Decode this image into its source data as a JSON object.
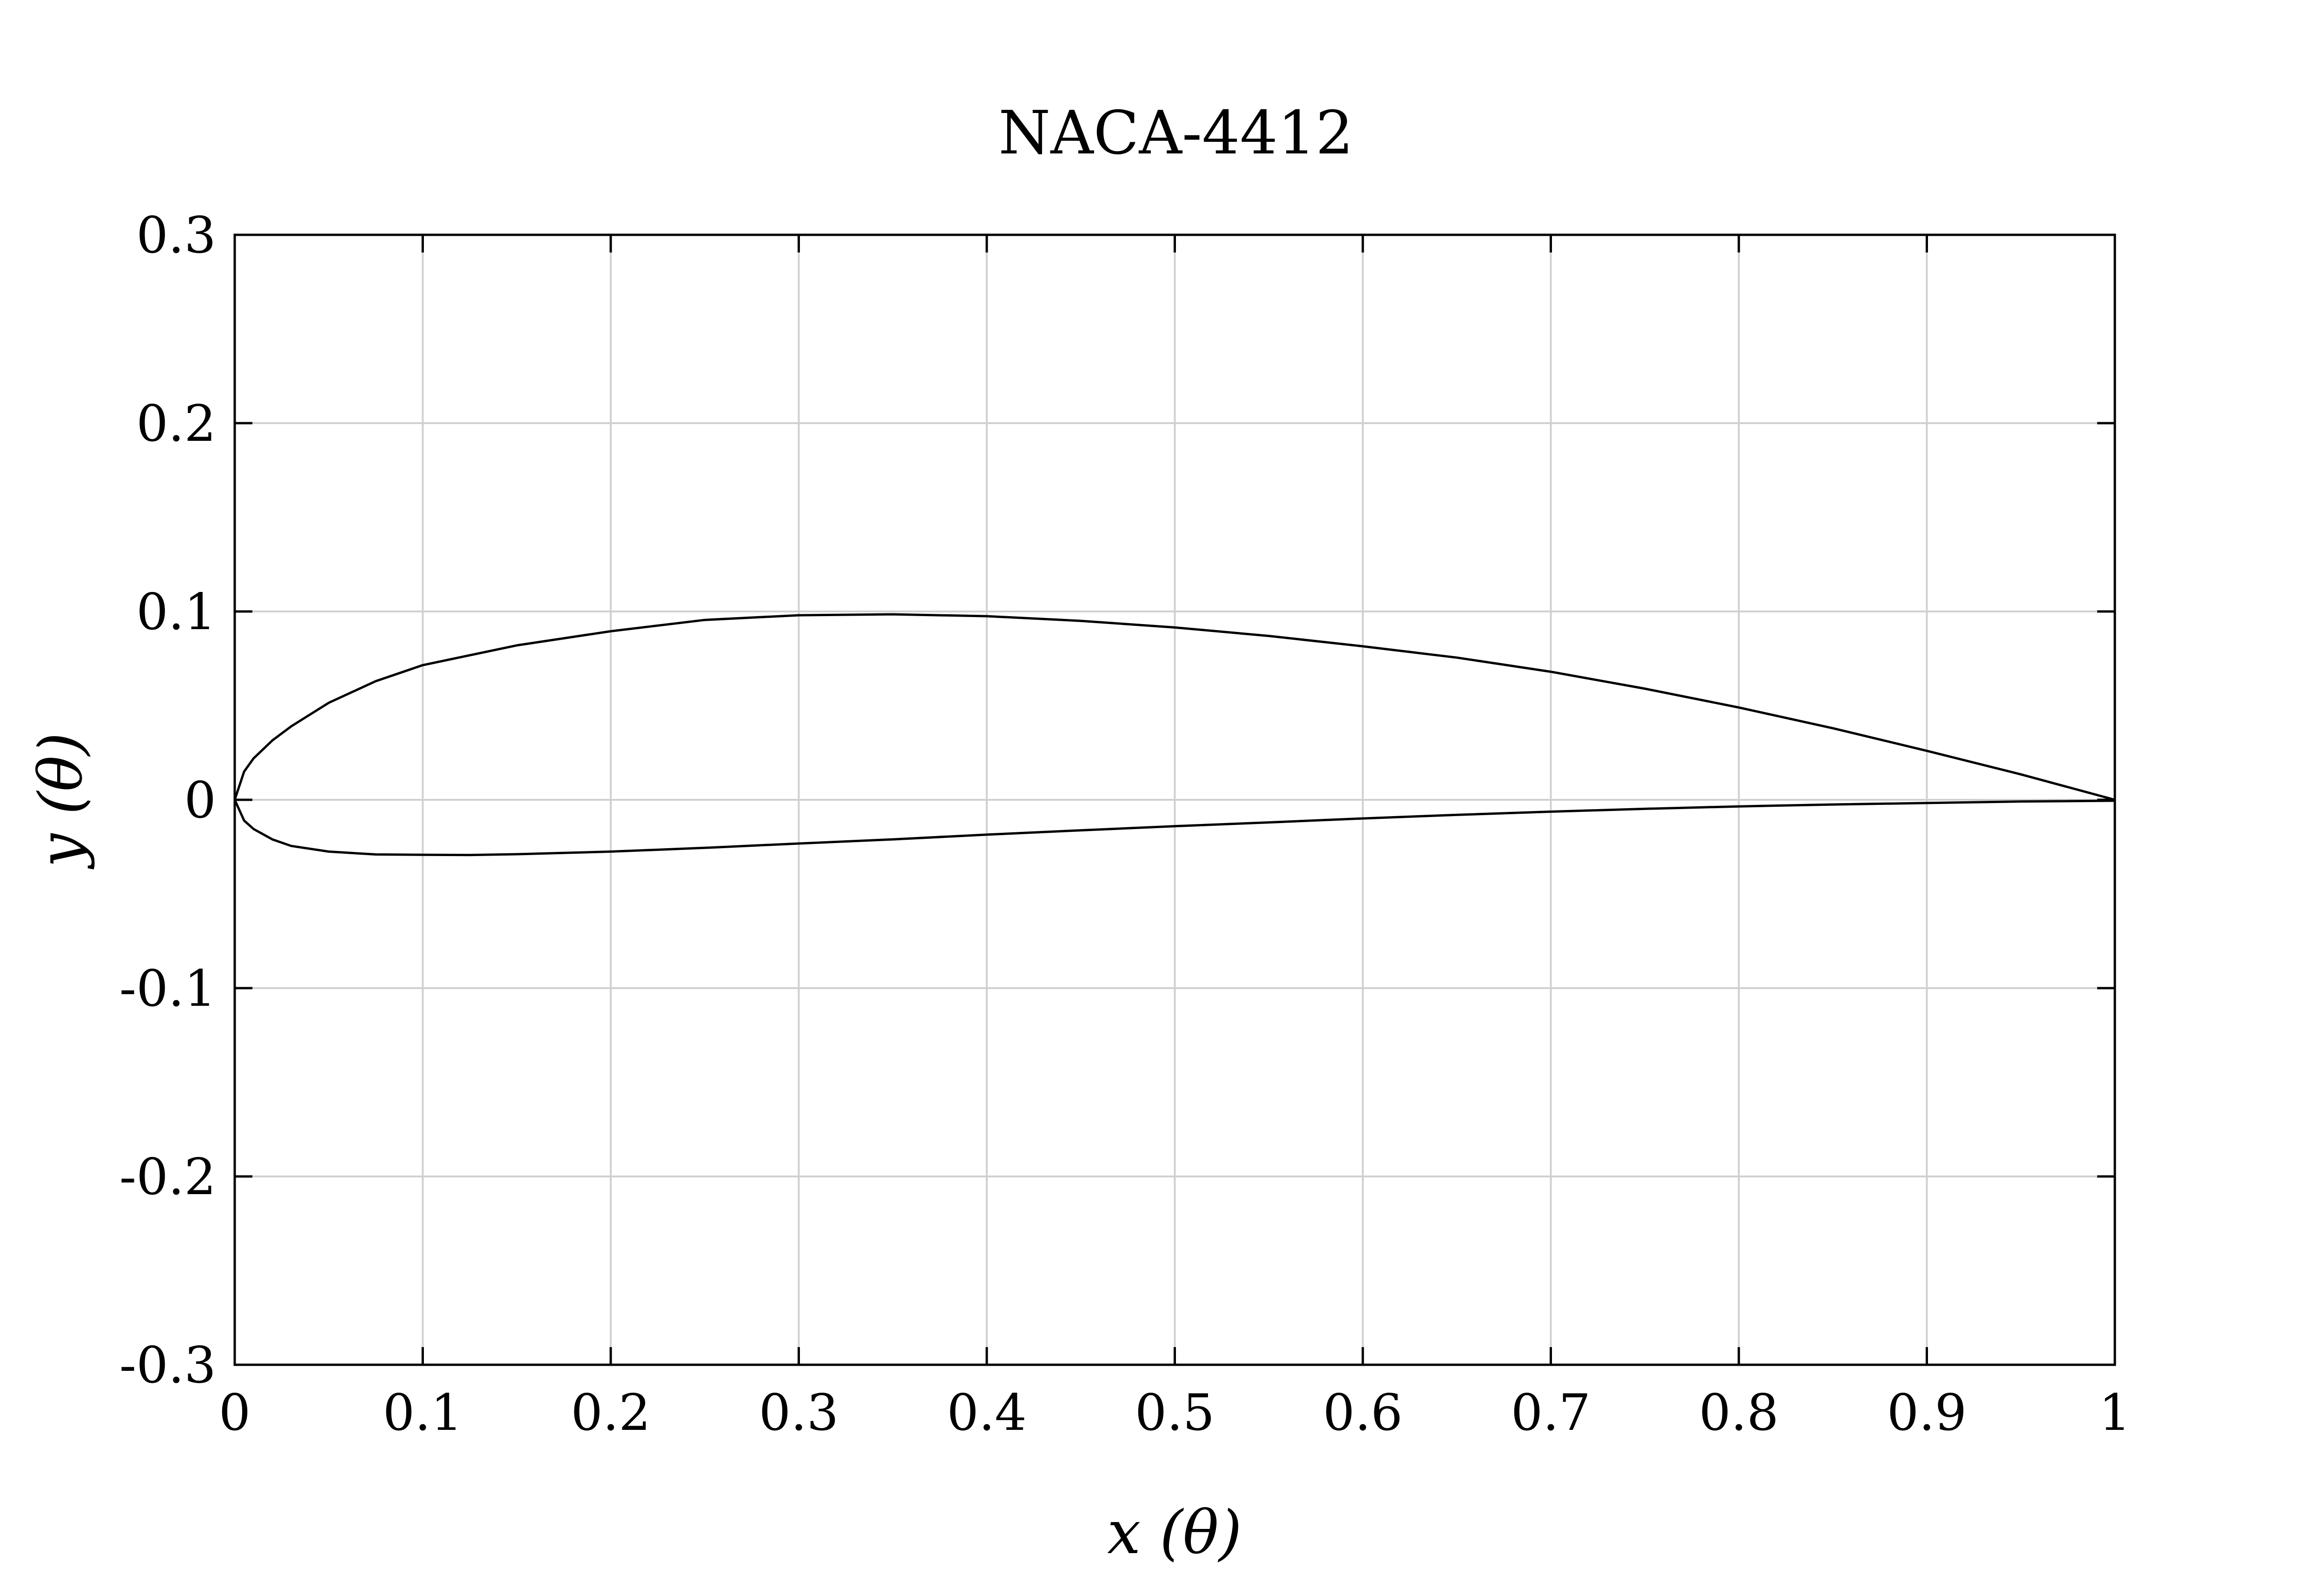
{
  "chart_data": {
    "type": "line",
    "title": "NACA-4412",
    "xlabel": "x (θ)",
    "ylabel": "y (θ)",
    "xlim": [
      0,
      1
    ],
    "ylim": [
      -0.3,
      0.3
    ],
    "grid": true,
    "x_ticks": [
      {
        "value": 0,
        "label": "0"
      },
      {
        "value": 0.1,
        "label": "0.1"
      },
      {
        "value": 0.2,
        "label": "0.2"
      },
      {
        "value": 0.3,
        "label": "0.3"
      },
      {
        "value": 0.4,
        "label": "0.4"
      },
      {
        "value": 0.5,
        "label": "0.5"
      },
      {
        "value": 0.6,
        "label": "0.6"
      },
      {
        "value": 0.7,
        "label": "0.7"
      },
      {
        "value": 0.8,
        "label": "0.8"
      },
      {
        "value": 0.9,
        "label": "0.9"
      },
      {
        "value": 1,
        "label": "1"
      }
    ],
    "y_ticks": [
      {
        "value": 0.3,
        "label": "0.3"
      },
      {
        "value": 0.2,
        "label": "0.2"
      },
      {
        "value": 0.1,
        "label": "0.1"
      },
      {
        "value": 0,
        "label": "0"
      },
      {
        "value": -0.1,
        "label": "-0.1"
      },
      {
        "value": -0.2,
        "label": "-0.2"
      },
      {
        "value": -0.3,
        "label": "-0.3"
      }
    ],
    "series": [
      {
        "color": "#000000",
        "x": [
          1.0,
          0.95,
          0.9,
          0.85,
          0.8,
          0.75,
          0.7,
          0.65,
          0.6,
          0.55,
          0.5,
          0.45,
          0.4,
          0.35,
          0.3,
          0.25,
          0.2,
          0.15,
          0.1,
          0.075,
          0.05,
          0.03,
          0.02,
          0.01,
          0.005,
          0.0,
          0.005,
          0.01,
          0.02,
          0.03,
          0.05,
          0.075,
          0.1,
          0.125,
          0.15,
          0.2,
          0.25,
          0.3,
          0.35,
          0.4,
          0.45,
          0.5,
          0.55,
          0.6,
          0.65,
          0.7,
          0.75,
          0.8,
          0.85,
          0.9,
          0.95,
          1.0
        ],
        "y": [
          0.0,
          0.0135,
          0.026,
          0.038,
          0.049,
          0.059,
          0.068,
          0.0755,
          0.0815,
          0.087,
          0.0915,
          0.095,
          0.0975,
          0.0985,
          0.098,
          0.0955,
          0.0895,
          0.082,
          0.0715,
          0.063,
          0.0515,
          0.039,
          0.0315,
          0.022,
          0.015,
          0.0,
          -0.011,
          -0.0155,
          -0.021,
          -0.0245,
          -0.0275,
          -0.029,
          -0.0292,
          -0.0293,
          -0.0289,
          -0.0275,
          -0.0255,
          -0.0232,
          -0.021,
          -0.0185,
          -0.0162,
          -0.014,
          -0.012,
          -0.0099,
          -0.008,
          -0.0063,
          -0.0048,
          -0.0035,
          -0.0025,
          -0.0017,
          -0.0009,
          -0.0005
        ]
      }
    ]
  }
}
